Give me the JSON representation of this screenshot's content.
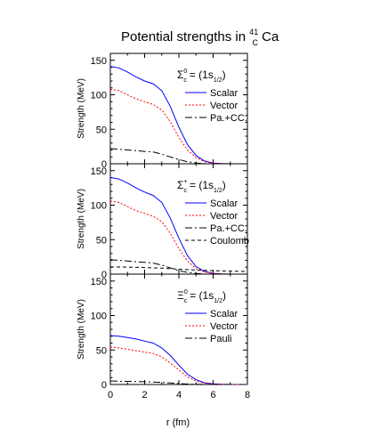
{
  "figure": {
    "title_text": "Potential strengths in ",
    "title_sup": "41",
    "title_sub": "C",
    "title_end": "Ca",
    "xlabel": "r (fm)"
  },
  "chart_data": [
    {
      "type": "line",
      "particle": "Σ",
      "particle_sup": "0",
      "particle_sub": "c",
      "state": "= (1s",
      "state_sub": "1/2",
      "state_end": ")",
      "xlim": [
        0,
        8
      ],
      "ylim": [
        0,
        160
      ],
      "xticks": [
        0,
        2,
        4,
        6,
        8
      ],
      "yticks": [
        0,
        50,
        100,
        150
      ],
      "ylabel": "Strength (MeV)",
      "legend_position": "top-right",
      "series": [
        {
          "name": "Scalar",
          "color": "#0000ff",
          "dash": "",
          "x": [
            0,
            0.5,
            1,
            1.5,
            2,
            2.5,
            3,
            3.5,
            4,
            4.5,
            5,
            5.5,
            6,
            6.5,
            7,
            8
          ],
          "y": [
            141,
            139,
            133,
            126,
            120,
            116,
            106,
            83,
            53,
            28,
            12,
            4,
            1,
            0.3,
            0,
            0
          ]
        },
        {
          "name": "Vector",
          "color": "#ff0000",
          "dash": "2,2",
          "x": [
            0,
            0.5,
            1,
            1.5,
            2,
            2.5,
            3,
            3.5,
            4,
            4.5,
            5,
            5.5,
            6,
            6.5,
            7,
            8
          ],
          "y": [
            108,
            106,
            100,
            94,
            90,
            86,
            78,
            61,
            38,
            20,
            9,
            3,
            1,
            0.3,
            0,
            0
          ]
        },
        {
          "name": "Pa.+CC.",
          "color": "#000000",
          "dash": "8,3,2,3",
          "x": [
            0,
            0.5,
            1,
            1.5,
            2,
            2.5,
            3,
            3.5,
            4,
            4.5,
            5,
            5.5,
            6,
            7,
            8
          ],
          "y": [
            22,
            21,
            20,
            19,
            18,
            17,
            14,
            10,
            6,
            3,
            1,
            0.3,
            0,
            0,
            0
          ]
        }
      ]
    },
    {
      "type": "line",
      "particle": "Σ",
      "particle_sup": "+",
      "particle_sub": "c",
      "state": "= (1s",
      "state_sub": "1/2",
      "state_end": ")",
      "xlim": [
        0,
        8
      ],
      "ylim": [
        0,
        160
      ],
      "xticks": [
        0,
        2,
        4,
        6,
        8
      ],
      "yticks": [
        0,
        50,
        100,
        150
      ],
      "ylabel": "Strength (MeV)",
      "legend_position": "top-right",
      "series": [
        {
          "name": "Scalar",
          "color": "#0000ff",
          "dash": "",
          "x": [
            0,
            0.5,
            1,
            1.5,
            2,
            2.5,
            3,
            3.5,
            4,
            4.5,
            5,
            5.5,
            6,
            6.5,
            7,
            8
          ],
          "y": [
            140,
            138,
            132,
            125,
            119,
            114,
            104,
            81,
            52,
            27,
            11,
            4,
            1,
            0.3,
            0,
            0
          ]
        },
        {
          "name": "Vector",
          "color": "#ff0000",
          "dash": "2,2",
          "x": [
            0,
            0.5,
            1,
            1.5,
            2,
            2.5,
            3,
            3.5,
            4,
            4.5,
            5,
            5.5,
            6,
            6.5,
            7,
            8
          ],
          "y": [
            106,
            104,
            98,
            92,
            88,
            84,
            76,
            59,
            37,
            19,
            8,
            3,
            1,
            0.3,
            0,
            0
          ]
        },
        {
          "name": "Pa.+CC.",
          "color": "#000000",
          "dash": "8,3,2,3",
          "x": [
            0,
            0.5,
            1,
            1.5,
            2,
            2.5,
            3,
            3.5,
            4,
            4.5,
            5,
            5.5,
            6,
            7,
            8
          ],
          "y": [
            21,
            20,
            19,
            18,
            17,
            16,
            13,
            9,
            5,
            2.5,
            1,
            0.3,
            0,
            0,
            0
          ]
        },
        {
          "name": "Coulomb",
          "color": "#000000",
          "dash": "4,3",
          "x": [
            0,
            1,
            2,
            3,
            4,
            5,
            6,
            7,
            8
          ],
          "y": [
            10.5,
            10.2,
            9.6,
            8.6,
            7.2,
            6.0,
            5.0,
            4.4,
            3.8
          ]
        }
      ]
    },
    {
      "type": "line",
      "particle": "Ξ",
      "particle_sup": "0",
      "particle_sub": "c",
      "state": "= (1s",
      "state_sub": "1/2",
      "state_end": ")",
      "xlim": [
        0,
        8
      ],
      "ylim": [
        0,
        160
      ],
      "xticks": [
        0,
        2,
        4,
        6,
        8
      ],
      "yticks": [
        0,
        50,
        100,
        150
      ],
      "ylabel": "Strength (MeV)",
      "legend_position": "top-right",
      "series": [
        {
          "name": "Scalar",
          "color": "#0000ff",
          "dash": "",
          "x": [
            0,
            0.5,
            1,
            1.5,
            2,
            2.5,
            3,
            3.5,
            4,
            4.5,
            5,
            5.5,
            6,
            6.5,
            7,
            8
          ],
          "y": [
            71,
            70,
            68,
            66,
            63,
            60,
            53,
            42,
            28,
            15,
            7,
            2.5,
            1,
            0.3,
            0,
            0
          ]
        },
        {
          "name": "Vector",
          "color": "#ff0000",
          "dash": "2,2",
          "x": [
            0,
            0.5,
            1,
            1.5,
            2,
            2.5,
            3,
            3.5,
            4,
            4.5,
            5,
            5.5,
            6,
            6.5,
            7,
            8
          ],
          "y": [
            54,
            53,
            51,
            49,
            47,
            45,
            40,
            31,
            21,
            11,
            5,
            2,
            0.7,
            0.2,
            0,
            0
          ]
        },
        {
          "name": "Pauli",
          "color": "#000000",
          "dash": "8,3,2,3",
          "x": [
            0,
            0.5,
            1,
            1.5,
            2,
            2.5,
            3,
            3.5,
            4,
            4.5,
            5,
            5.5,
            6,
            7,
            8
          ],
          "y": [
            5,
            4.8,
            4.5,
            4.2,
            4,
            3.6,
            3,
            2.2,
            1.4,
            0.7,
            0.3,
            0.1,
            0,
            0,
            0
          ]
        }
      ]
    }
  ]
}
